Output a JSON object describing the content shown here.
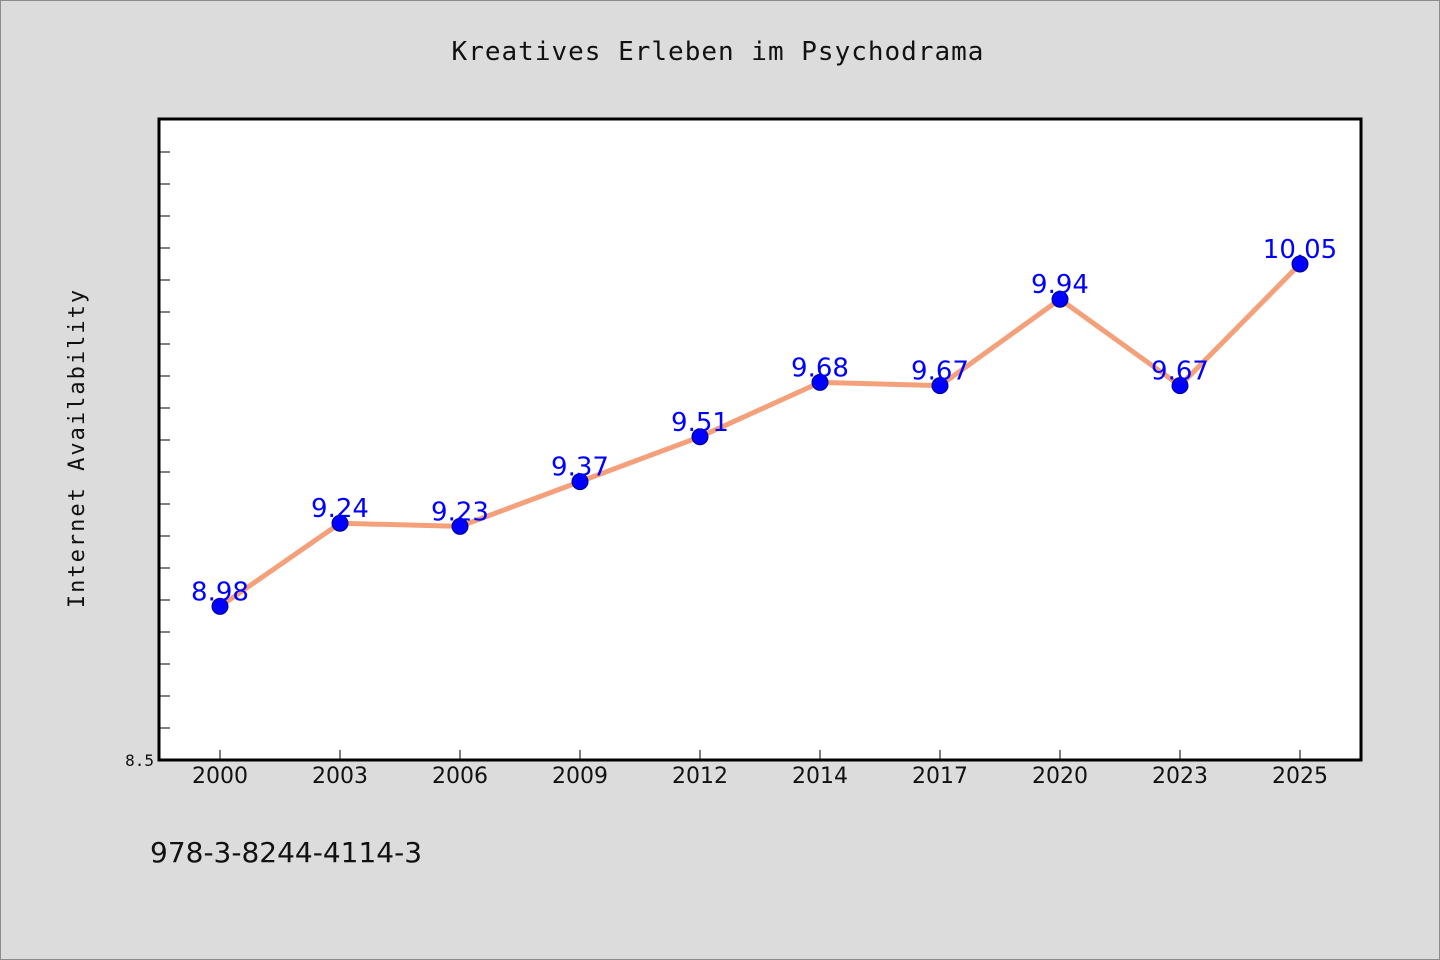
{
  "chart_data": {
    "type": "line",
    "title": "Kreatives Erleben im Psychodrama",
    "xlabel": "",
    "ylabel": "Internet Availability",
    "categories": [
      "2000",
      "2003",
      "2006",
      "2009",
      "2012",
      "2014",
      "2017",
      "2020",
      "2023",
      "2025"
    ],
    "values": [
      8.98,
      9.24,
      9.23,
      9.37,
      9.51,
      9.68,
      9.67,
      9.94,
      9.67,
      10.05
    ],
    "data_labels": [
      "8.98",
      "9.24",
      "9.23",
      "9.37",
      "9.51",
      "9.68",
      "9.67",
      "9.94",
      "9.67",
      "10.05"
    ],
    "ylim": [
      8.5,
      10.5
    ],
    "y_tick_labels": [
      "8.5"
    ],
    "grid": false,
    "legend": "none",
    "line_color": "#f4a07a",
    "marker_color": "#0000ff",
    "label_color": "#0000ff"
  },
  "footnote": "978-3-8244-4114-3"
}
